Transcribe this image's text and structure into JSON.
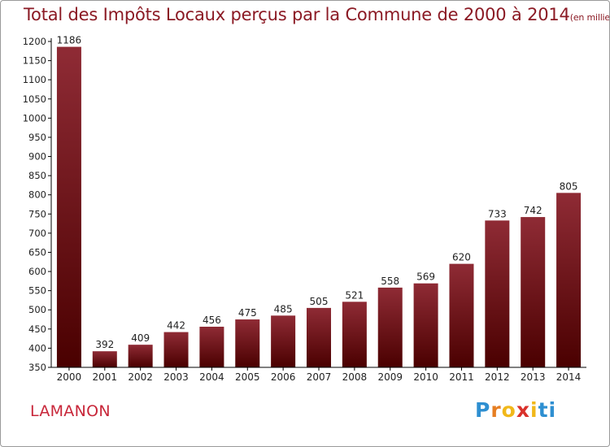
{
  "title": "Total des Impôts Locaux perçus par la Commune de 2000 à 2014",
  "title_unit": "(en milliers d'€)",
  "commune": "LAMANON",
  "logo": {
    "letters": [
      "P",
      "r",
      "o",
      "x",
      "i",
      "t",
      "i"
    ],
    "colors": [
      "#2e8fd1",
      "#e67e22",
      "#f1b81a",
      "#d9312b",
      "#f1b81a",
      "#2e8fd1",
      "#2e8fd1"
    ]
  },
  "colors": {
    "bar_top": "#8f2b35",
    "bar_bottom": "#4a0000",
    "title": "#8b1a24",
    "commune": "#c8273a"
  },
  "chart_data": {
    "type": "bar",
    "categories": [
      "2000",
      "2001",
      "2002",
      "2003",
      "2004",
      "2005",
      "2006",
      "2007",
      "2008",
      "2009",
      "2010",
      "2011",
      "2012",
      "2013",
      "2014"
    ],
    "values": [
      1186,
      392,
      409,
      442,
      456,
      475,
      485,
      505,
      521,
      558,
      569,
      620,
      733,
      742,
      805
    ],
    "ylim": [
      350,
      1200
    ],
    "yticks": [
      350,
      400,
      450,
      500,
      550,
      600,
      650,
      700,
      750,
      800,
      850,
      900,
      950,
      1000,
      1050,
      1100,
      1150,
      1200
    ],
    "grid": false,
    "xlabel": "",
    "ylabel": ""
  }
}
